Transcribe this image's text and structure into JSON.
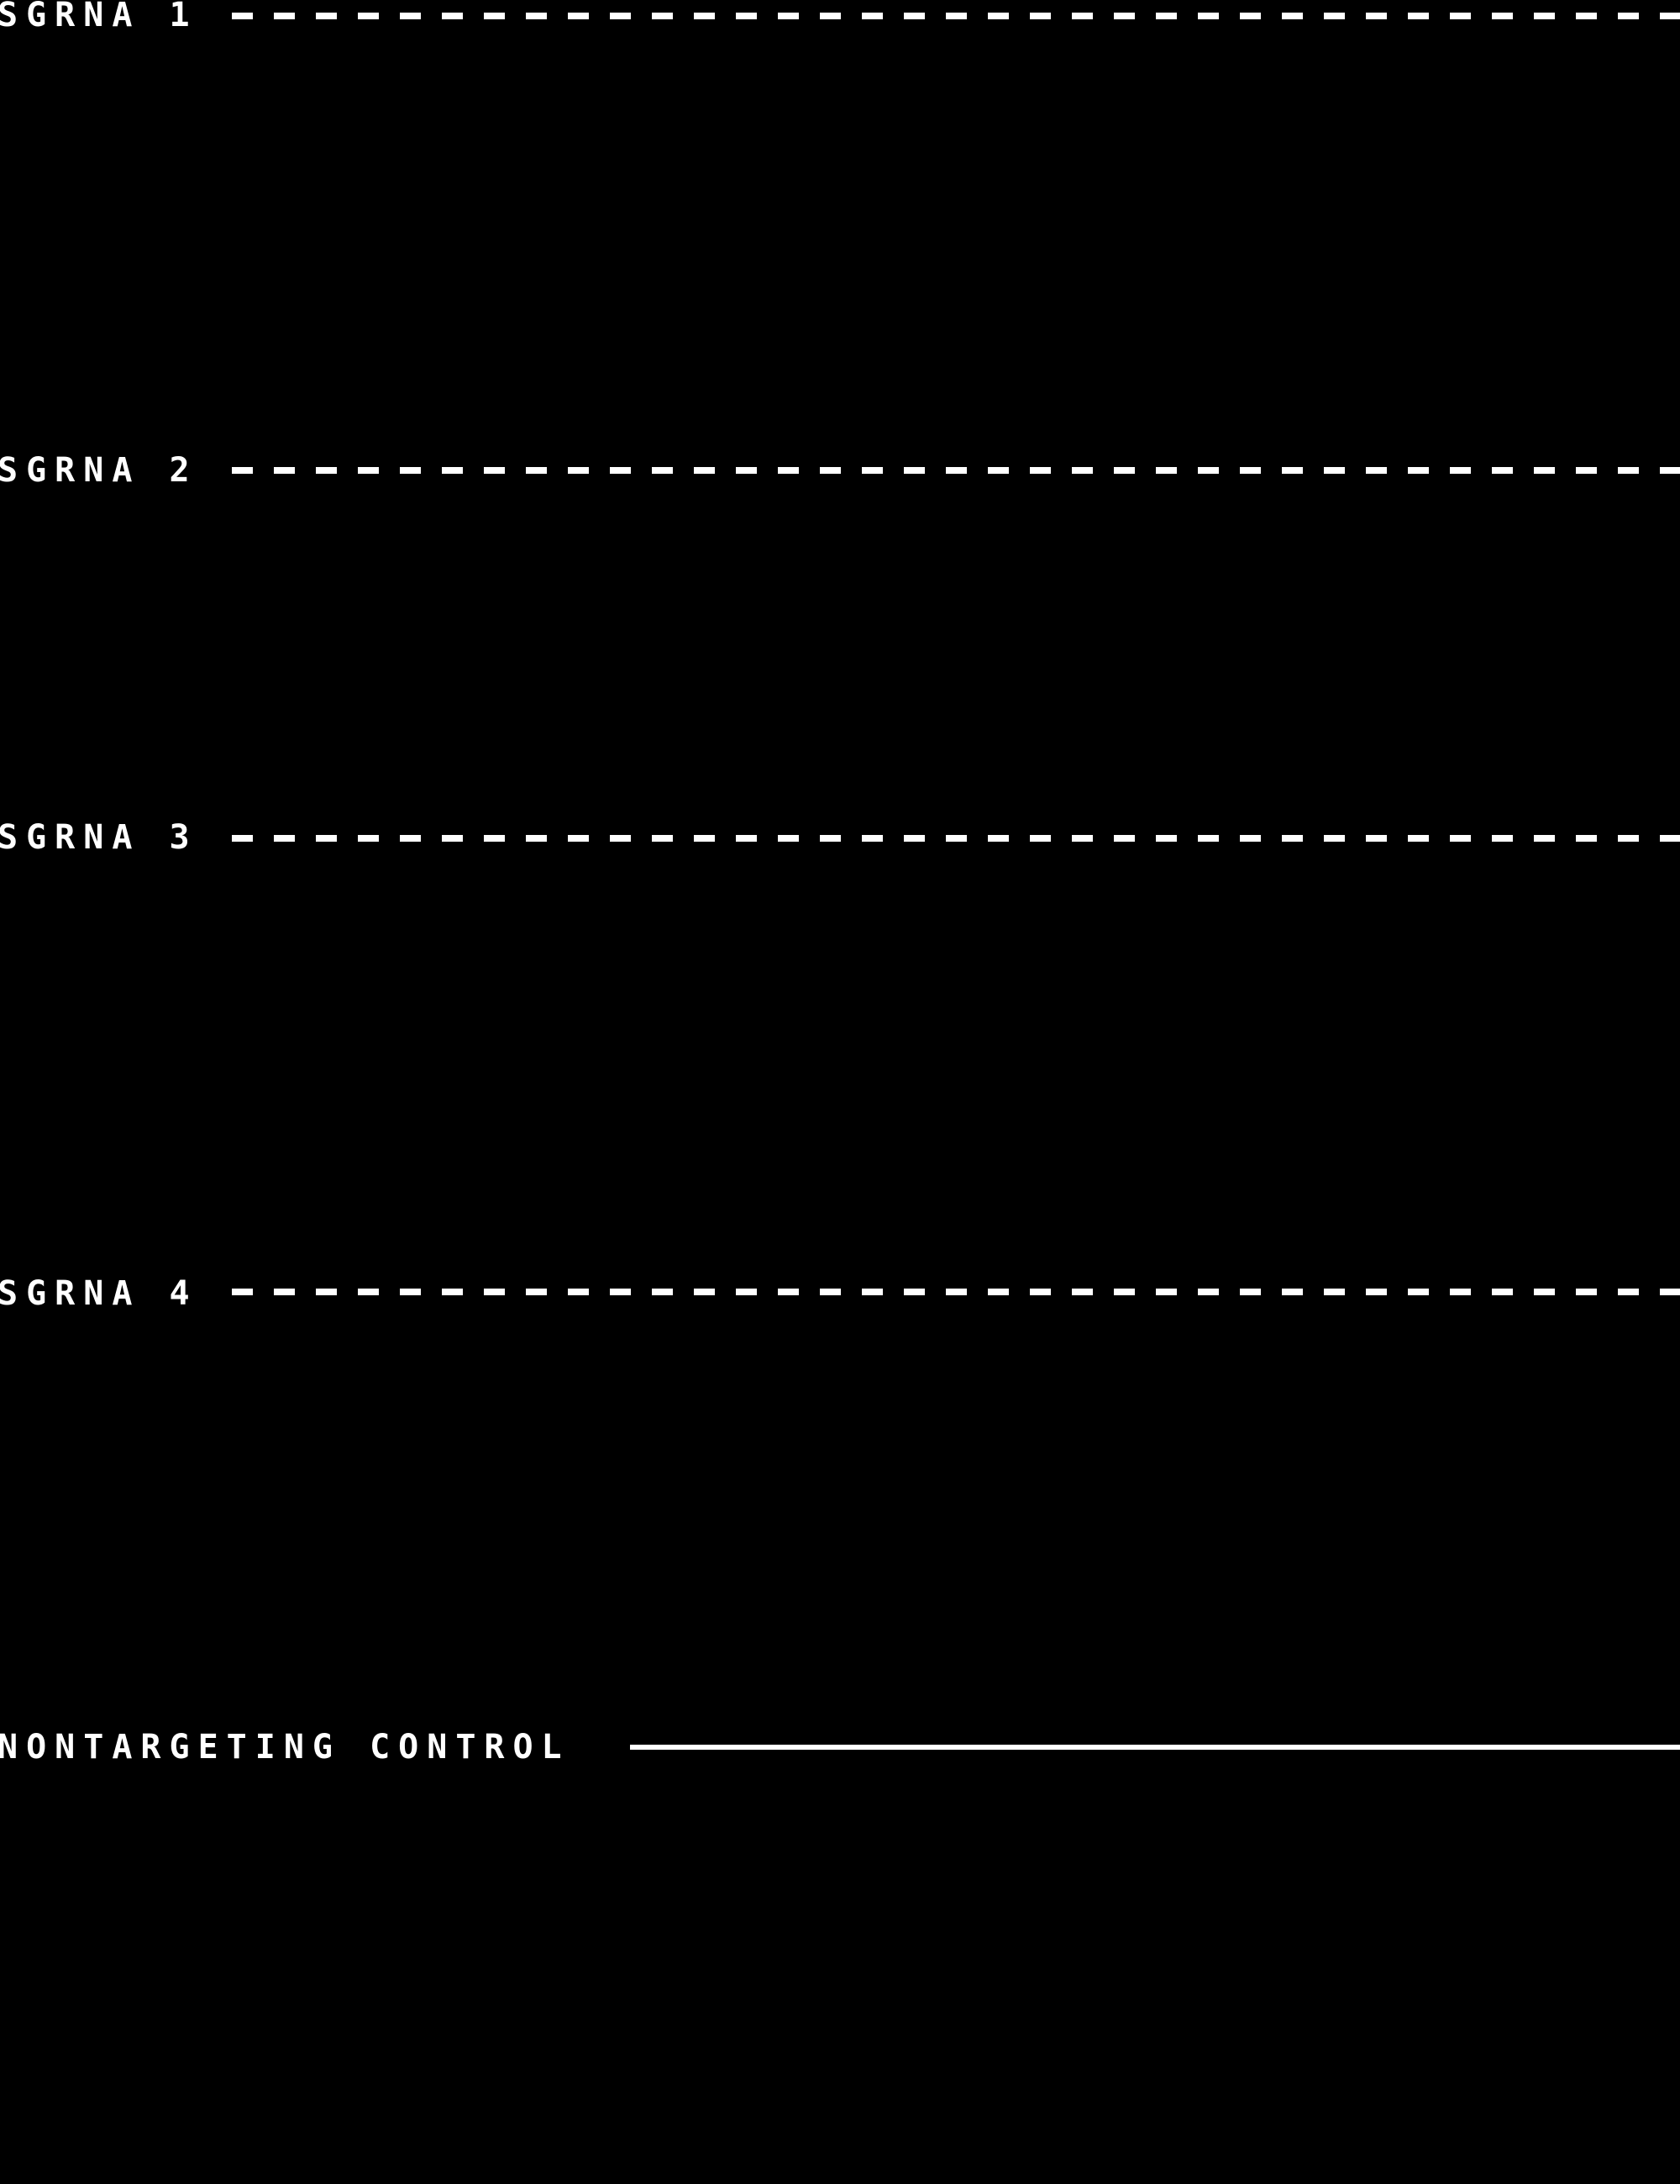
{
  "figure": {
    "background_color": "#000000",
    "text_color": "#ffffff",
    "rows": [
      {
        "label": "SGRNA 1",
        "line_style": "dashed"
      },
      {
        "label": "SGRNA 2",
        "line_style": "dashed"
      },
      {
        "label": "SGRNA 3",
        "line_style": "dashed"
      },
      {
        "label": "SGRNA 4",
        "line_style": "dashed"
      },
      {
        "label": "NONTARGETING CONTROL",
        "line_style": "solid"
      }
    ]
  }
}
